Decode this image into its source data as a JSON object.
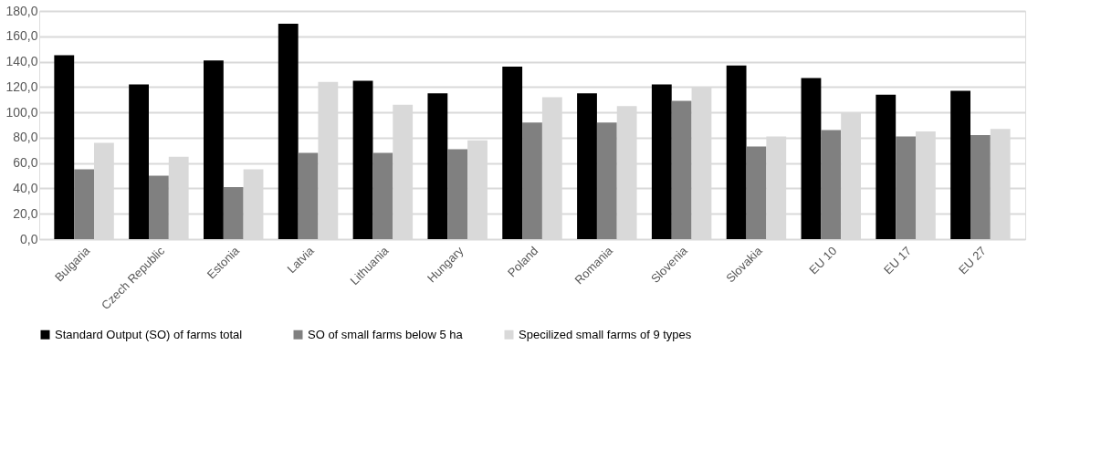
{
  "chart_data": {
    "type": "bar",
    "categories": [
      "Bulgaria",
      "Czech Republic",
      "Estonia",
      "Latvia",
      "Lithuania",
      "Hungary",
      "Poland",
      "Romania",
      "Slovenia",
      "Slovakia",
      "EU 10",
      "EU 17",
      "EU 27"
    ],
    "series": [
      {
        "name": "Standard Output (SO)  of  farms   total",
        "color": "#000000",
        "values": [
          145,
          122,
          141,
          170,
          125,
          115,
          136,
          115,
          122,
          137,
          127,
          114,
          117
        ]
      },
      {
        "name": "SO  of small farms below 5 ha",
        "color": "#808080",
        "values": [
          55,
          50,
          41,
          68,
          68,
          71,
          92,
          92,
          109,
          73,
          86,
          81,
          82
        ]
      },
      {
        "name": "Specilized small farms of 9 types",
        "color": "#d9d9d9",
        "values": [
          76,
          65,
          55,
          124,
          106,
          78,
          112,
          105,
          120,
          81,
          100,
          85,
          87
        ]
      }
    ],
    "ylim": [
      0,
      180
    ],
    "yticks": [
      {
        "value": 0,
        "label": "0,0"
      },
      {
        "value": 20,
        "label": "20,0"
      },
      {
        "value": 40,
        "label": "40,0"
      },
      {
        "value": 60,
        "label": "60,0"
      },
      {
        "value": 80,
        "label": "80,0"
      },
      {
        "value": 100,
        "label": "100,0"
      },
      {
        "value": 120,
        "label": "120,0"
      },
      {
        "value": 140,
        "label": "140,0"
      },
      {
        "value": 160,
        "label": "160,0"
      },
      {
        "value": 180,
        "label": "180,0"
      }
    ],
    "grid": "y",
    "legend": "bottom"
  }
}
